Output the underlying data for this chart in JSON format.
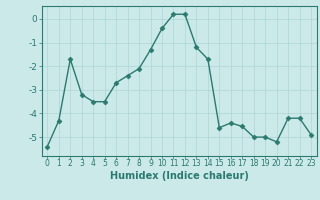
{
  "x": [
    0,
    1,
    2,
    3,
    4,
    5,
    6,
    7,
    8,
    9,
    10,
    11,
    12,
    13,
    14,
    15,
    16,
    17,
    18,
    19,
    20,
    21,
    22,
    23
  ],
  "y": [
    -5.4,
    -4.3,
    -1.7,
    -3.2,
    -3.5,
    -3.5,
    -2.7,
    -2.4,
    -2.1,
    -1.3,
    -0.4,
    0.2,
    0.2,
    -1.2,
    -1.7,
    -4.6,
    -4.4,
    -4.55,
    -5.0,
    -5.0,
    -5.2,
    -4.2,
    -4.2,
    -4.9
  ],
  "line_color": "#2a7a6e",
  "marker": "D",
  "markersize": 2.5,
  "linewidth": 1.0,
  "xlabel": "Humidex (Indice chaleur)",
  "xlabel_fontsize": 7,
  "yticks": [
    0,
    -1,
    -2,
    -3,
    -4,
    -5
  ],
  "ytick_labels": [
    "0",
    "-1",
    "-2",
    "-3",
    "-4",
    "-5"
  ],
  "ylim": [
    -5.8,
    0.55
  ],
  "xlim": [
    -0.5,
    23.5
  ],
  "bg_color": "#cce9e9",
  "grid_color": "#afd4d4",
  "tick_color": "#2a7a6e",
  "label_color": "#2a7a6e",
  "spine_color": "#2a7a6e",
  "xtick_fontsize": 5.5,
  "ytick_fontsize": 6.5
}
